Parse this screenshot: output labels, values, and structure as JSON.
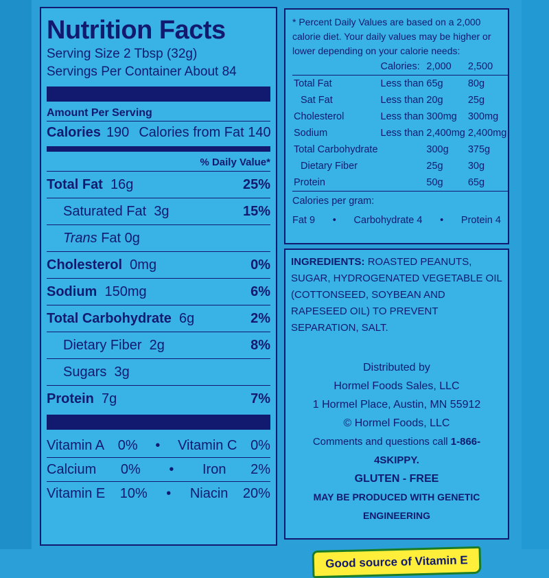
{
  "nutrition": {
    "title": "Nutrition Facts",
    "serving_size": "Serving Size  2 Tbsp (32g)",
    "servings_per_container": "Servings Per Container  About 84",
    "amount_per_serving": "Amount Per Serving",
    "calories_label": "Calories",
    "calories_value": "190",
    "calories_from_fat": "Calories from Fat 140",
    "dv_header": "% Daily Value*",
    "rows": [
      {
        "label": "Total Fat",
        "amount": "16g",
        "dv": "25%"
      },
      {
        "label": "Saturated Fat",
        "amount": "3g",
        "dv": "15%"
      },
      {
        "label": "Trans",
        "label2": "Fat",
        "amount": "0g",
        "dv": ""
      },
      {
        "label": "Cholesterol",
        "amount": "0mg",
        "dv": "0%"
      },
      {
        "label": "Sodium",
        "amount": "150mg",
        "dv": "6%"
      },
      {
        "label": "Total Carbohydrate",
        "amount": "6g",
        "dv": "2%"
      },
      {
        "label": "Dietary Fiber",
        "amount": "2g",
        "dv": "8%"
      },
      {
        "label": "Sugars",
        "amount": "3g",
        "dv": ""
      },
      {
        "label": "Protein",
        "amount": "7g",
        "dv": "7%"
      }
    ],
    "vitamins": [
      {
        "a": "Vitamin A",
        "av": "0%",
        "b": "Vitamin C",
        "bv": "0%"
      },
      {
        "a": "Calcium",
        "av": "0%",
        "b": "Iron",
        "bv": "2%"
      },
      {
        "a": "Vitamin E",
        "av": "10%",
        "b": "Niacin",
        "bv": "20%"
      }
    ],
    "bullet": "•"
  },
  "daily_values": {
    "note": "* Percent Daily Values are based on a 2,000 calorie diet. Your daily values may be higher or lower depending on your calorie needs:",
    "header": {
      "label": "Calories:",
      "c1": "2,000",
      "c2": "2,500"
    },
    "rows": [
      {
        "nutrient": "Total Fat",
        "qualifier": "Less than",
        "c1": "65g",
        "c2": "80g"
      },
      {
        "nutrient": "Sat Fat",
        "qualifier": "Less than",
        "c1": "20g",
        "c2": "25g"
      },
      {
        "nutrient": "Cholesterol",
        "qualifier": "Less than",
        "c1": "300mg",
        "c2": "300mg"
      },
      {
        "nutrient": "Sodium",
        "qualifier": "Less than",
        "c1": "2,400mg",
        "c2": "2,400mg"
      },
      {
        "nutrient": "Total Carbohydrate",
        "qualifier": "",
        "c1": "300g",
        "c2": "375g"
      },
      {
        "nutrient": "Dietary Fiber",
        "qualifier": "",
        "c1": "25g",
        "c2": "30g"
      },
      {
        "nutrient": "Protein",
        "qualifier": "",
        "c1": "50g",
        "c2": "65g"
      }
    ],
    "cal_per_gram_label": "Calories per gram:",
    "cal_per_gram": {
      "fat": "Fat 9",
      "carb": "Carbohydrate 4",
      "protein": "Protein 4"
    },
    "bullet": "•"
  },
  "ingredients": {
    "label": "INGREDIENTS:",
    "text": "ROASTED PEANUTS, SUGAR, HYDROGENATED VEGETABLE OIL (COTTONSEED, SOYBEAN AND RAPESEED OIL) TO PREVENT SEPARATION, SALT.",
    "distributed_by": "Distributed by",
    "company": "Hormel Foods Sales, LLC",
    "address": "1 Hormel Place, Austin, MN 55912",
    "copyright": "© Hormel Foods, LLC",
    "comments_prefix": "Comments and questions call",
    "phone": "1-866-4SKIPPY.",
    "gluten_free": "GLUTEN - FREE",
    "ge_notice": "MAY BE PRODUCED WITH GENETIC ENGINEERING",
    "badge": "Good source of Vitamin E"
  },
  "colors": {
    "ink": "#111a6e",
    "panel": "#39b2e6",
    "badge_fill": "#ffee3a",
    "badge_border": "#1a7d26"
  }
}
